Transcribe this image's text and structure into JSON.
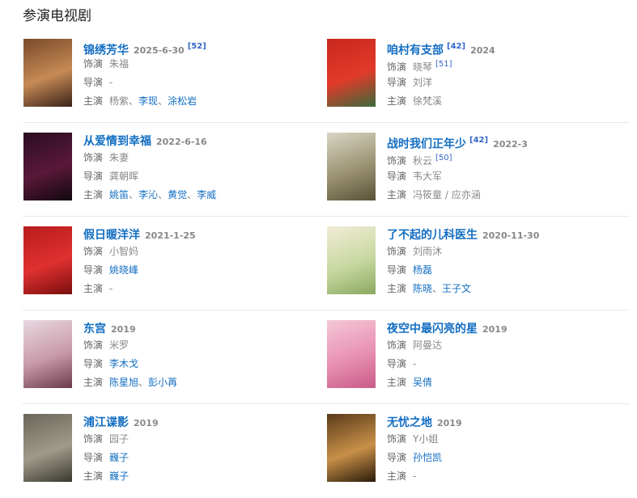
{
  "section_title": "参演电视剧",
  "labels": {
    "role": "饰演",
    "director": "导演",
    "cast": "主演"
  },
  "items": [
    {
      "title": "锦绣芳华",
      "year": "2025-6-30",
      "title_ref": "[52]",
      "ref_after_year": true,
      "role": "朱福",
      "role_ref": "",
      "director": [
        {
          "name": "-",
          "link": false
        }
      ],
      "cast": [
        {
          "name": "杨紫",
          "link": false
        },
        {
          "name": "李现",
          "link": true
        },
        {
          "name": "涂松岩",
          "link": true
        }
      ],
      "cast_sep": "、",
      "poster_colors": [
        "#7a4a2a",
        "#c58a55",
        "#3a2218"
      ]
    },
    {
      "title": "咱村有支部",
      "year": "2024",
      "title_ref": "[42]",
      "ref_after_year": false,
      "role": "晓琴",
      "role_ref": "[51]",
      "director": [
        {
          "name": "刘洋",
          "link": false
        }
      ],
      "cast": [
        {
          "name": "徐梵溪",
          "link": false
        }
      ],
      "cast_sep": "、",
      "poster_colors": [
        "#c8281e",
        "#e23a2a",
        "#3a6a3a"
      ]
    },
    {
      "title": "从爱情到幸福",
      "year": "2022-6-16",
      "title_ref": "",
      "ref_after_year": false,
      "role": "朱妻",
      "role_ref": "",
      "director": [
        {
          "name": "龚朝晖",
          "link": false
        }
      ],
      "cast": [
        {
          "name": "姚笛",
          "link": true
        },
        {
          "name": "李沁",
          "link": true
        },
        {
          "name": "黄觉",
          "link": true
        },
        {
          "name": "李威",
          "link": true
        }
      ],
      "cast_sep": "、",
      "poster_colors": [
        "#2a0e22",
        "#5a1838",
        "#120810"
      ]
    },
    {
      "title": "战时我们正年少",
      "year": "2022-3",
      "title_ref": "[42]",
      "ref_after_year": false,
      "role": "秋云",
      "role_ref": "[50]",
      "director": [
        {
          "name": "韦大军",
          "link": false
        }
      ],
      "cast": [
        {
          "name": "冯筱童 / 应亦涵",
          "link": false
        }
      ],
      "cast_sep": "、",
      "poster_colors": [
        "#d8d6c4",
        "#9a9272",
        "#5a5238"
      ]
    },
    {
      "title": "假日暖洋洋",
      "year": "2021-1-25",
      "title_ref": "",
      "ref_after_year": false,
      "role": "小智妈",
      "role_ref": "",
      "director": [
        {
          "name": "姚晓峰",
          "link": true
        }
      ],
      "cast": [
        {
          "name": "-",
          "link": false
        }
      ],
      "cast_sep": "、",
      "poster_colors": [
        "#b81c1c",
        "#e03030",
        "#7a0e0e"
      ]
    },
    {
      "title": "了不起的儿科医生",
      "year": "2020-11-30",
      "title_ref": "",
      "ref_after_year": false,
      "role": "刘雨沐",
      "role_ref": "",
      "director": [
        {
          "name": "杨磊",
          "link": true
        }
      ],
      "cast": [
        {
          "name": "陈晓",
          "link": true
        },
        {
          "name": "王子文",
          "link": true
        }
      ],
      "cast_sep": "、",
      "poster_colors": [
        "#f2ecd8",
        "#c8d8a0",
        "#8aa860"
      ]
    },
    {
      "title": "东宫",
      "year": "2019",
      "title_ref": "",
      "ref_after_year": false,
      "role": "米罗",
      "role_ref": "",
      "director": [
        {
          "name": "李木戈",
          "link": true
        }
      ],
      "cast": [
        {
          "name": "陈星旭",
          "link": true
        },
        {
          "name": "彭小苒",
          "link": true
        }
      ],
      "cast_sep": "、",
      "poster_colors": [
        "#e8d8e0",
        "#c89aa8",
        "#6a3a4a"
      ]
    },
    {
      "title": "夜空中最闪亮的星",
      "year": "2019",
      "title_ref": "",
      "ref_after_year": false,
      "role": "阿曼达",
      "role_ref": "",
      "director": [
        {
          "name": "-",
          "link": false
        }
      ],
      "cast": [
        {
          "name": "吴倩",
          "link": true
        }
      ],
      "cast_sep": "、",
      "poster_colors": [
        "#f4c8d8",
        "#e890b0",
        "#c85a88"
      ]
    },
    {
      "title": "浦江谍影",
      "year": "2019",
      "title_ref": "",
      "ref_after_year": false,
      "role": "园子",
      "role_ref": "",
      "director": [
        {
          "name": "巍子",
          "link": true
        }
      ],
      "cast": [
        {
          "name": "巍子",
          "link": true
        }
      ],
      "cast_sep": "、",
      "poster_colors": [
        "#6a6658",
        "#a09a88",
        "#3a3830"
      ]
    },
    {
      "title": "无忧之地",
      "year": "2019",
      "title_ref": "",
      "ref_after_year": false,
      "role": "Y小姐",
      "role_ref": "",
      "director": [
        {
          "name": "孙恺凯",
          "link": true
        }
      ],
      "cast": [
        {
          "name": "-",
          "link": false
        }
      ],
      "cast_sep": "、",
      "poster_colors": [
        "#5a3a1a",
        "#c89048",
        "#2a1a0a"
      ]
    }
  ]
}
